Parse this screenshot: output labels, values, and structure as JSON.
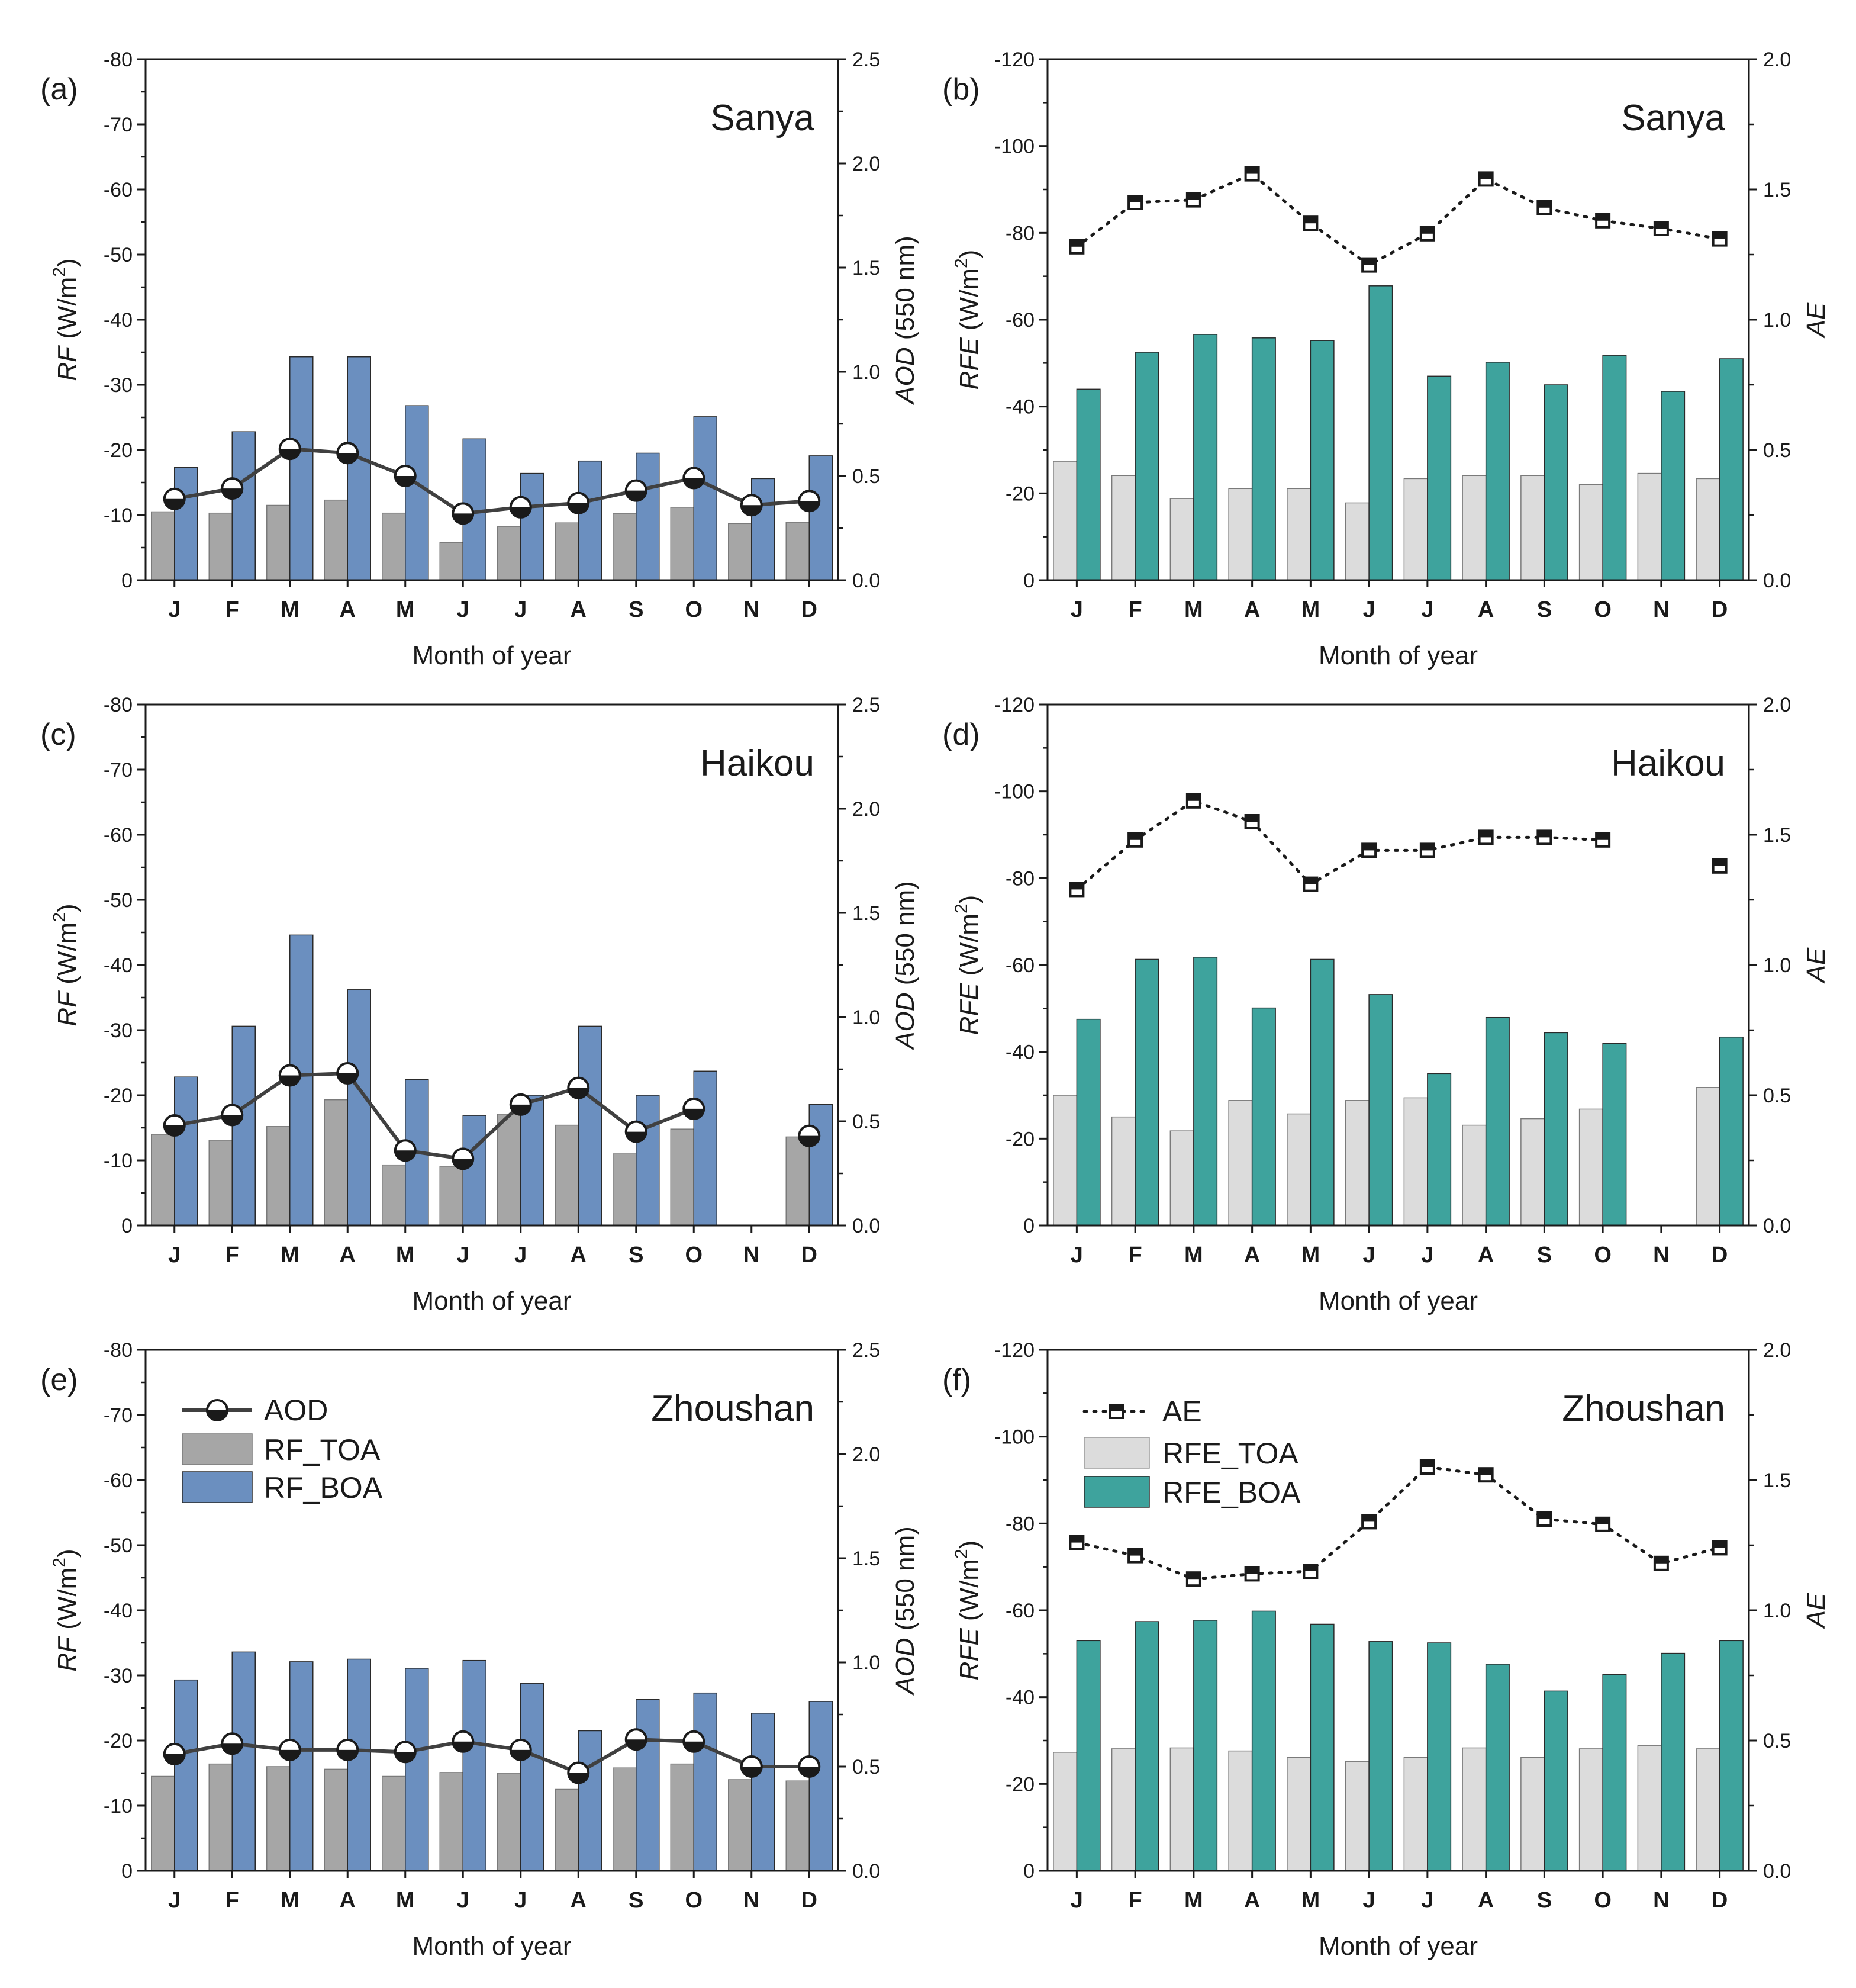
{
  "figure": {
    "xlabel": "Month of year",
    "months": [
      "J",
      "F",
      "M",
      "A",
      "M",
      "J",
      "J",
      "A",
      "S",
      "O",
      "N",
      "D"
    ]
  },
  "legend_rf": {
    "aod": "AOD",
    "toa": "RF_TOA",
    "boa": "RF_BOA"
  },
  "legend_rfe": {
    "ae": "AE",
    "toa": "RFE_TOA",
    "boa": "RFE_BOA"
  },
  "colors": {
    "rf_toa": "#a6a6a6",
    "rf_boa": "#6b8fbf",
    "rfe_toa": "#dcdcdc",
    "rfe_boa": "#3ea39d",
    "line": "#404040"
  },
  "chart_data": [
    {
      "panel": "(a)",
      "site": "Sanya",
      "type": "bar+line",
      "left_axis": {
        "label_main": "RF",
        "label_unit": "(W/m",
        "label_sup": "2",
        "label_close": ")",
        "ylim": [
          0,
          -80
        ],
        "ticks": [
          "0",
          "-10",
          "-20",
          "-30",
          "-40",
          "-50",
          "-60",
          "-70",
          "-80"
        ]
      },
      "right_axis": {
        "label_main": "AOD",
        "label_unit": "(550 nm)",
        "ylim": [
          0,
          2.5
        ],
        "ticks": [
          "0.0",
          "0.5",
          "1.0",
          "1.5",
          "2.0",
          "2.5"
        ]
      },
      "series": [
        {
          "name": "RF_TOA",
          "kind": "bar",
          "values": [
            -10.5,
            -10.3,
            -11.5,
            -12.3,
            -10.3,
            -5.8,
            -8.2,
            -8.8,
            -10.2,
            -11.2,
            -8.7,
            -8.9
          ]
        },
        {
          "name": "RF_BOA",
          "kind": "bar",
          "values": [
            -17.3,
            -22.8,
            -34.3,
            -34.3,
            -26.8,
            -21.7,
            -16.4,
            -18.3,
            -19.5,
            -25.1,
            -15.6,
            -19.1
          ]
        },
        {
          "name": "AOD",
          "kind": "line",
          "axis": "right",
          "values": [
            0.39,
            0.44,
            0.63,
            0.61,
            0.5,
            0.32,
            0.35,
            0.37,
            0.43,
            0.49,
            0.36,
            0.38
          ]
        }
      ]
    },
    {
      "panel": "(b)",
      "site": "Sanya",
      "type": "bar+line",
      "left_axis": {
        "label_main": "RFE",
        "label_unit": "(W/m",
        "label_sup": "2",
        "label_close": ")",
        "ylim": [
          0,
          -120
        ],
        "ticks": [
          "0",
          "-20",
          "-40",
          "-60",
          "-80",
          "-100",
          "-120"
        ]
      },
      "right_axis": {
        "label_main": "AE",
        "label_unit": "",
        "ylim": [
          0,
          2.0
        ],
        "ticks": [
          "0.0",
          "0.5",
          "1.0",
          "1.5",
          "2.0"
        ]
      },
      "series": [
        {
          "name": "RFE_TOA",
          "kind": "bar",
          "values": [
            -27.4,
            -24.1,
            -18.8,
            -21.1,
            -21.1,
            -17.8,
            -23.4,
            -24.1,
            -24.1,
            -22.0,
            -24.6,
            -23.4
          ]
        },
        {
          "name": "RFE_BOA",
          "kind": "bar",
          "values": [
            -44.0,
            -52.5,
            -56.6,
            -55.8,
            -55.2,
            -67.8,
            -47.0,
            -50.2,
            -45.0,
            -51.8,
            -43.5,
            -51.0
          ]
        },
        {
          "name": "AE",
          "kind": "line",
          "dotted": true,
          "axis": "right",
          "values": [
            1.28,
            1.45,
            1.46,
            1.56,
            1.37,
            1.21,
            1.33,
            1.54,
            1.43,
            1.38,
            1.35,
            1.31
          ]
        }
      ]
    },
    {
      "panel": "(c)",
      "site": "Haikou",
      "type": "bar+line",
      "left_axis": {
        "label_main": "RF",
        "label_unit": "(W/m",
        "label_sup": "2",
        "label_close": ")",
        "ylim": [
          0,
          -80
        ],
        "ticks": [
          "0",
          "-10",
          "-20",
          "-30",
          "-40",
          "-50",
          "-60",
          "-70",
          "-80"
        ]
      },
      "right_axis": {
        "label_main": "AOD",
        "label_unit": "(550 nm)",
        "ylim": [
          0,
          2.5
        ],
        "ticks": [
          "0.0",
          "0.5",
          "1.0",
          "1.5",
          "2.0",
          "2.5"
        ]
      },
      "series": [
        {
          "name": "RF_TOA",
          "kind": "bar",
          "values": [
            -14.0,
            -13.1,
            -15.2,
            -19.3,
            -9.3,
            -9.1,
            -17.1,
            -15.4,
            -11.0,
            -14.8,
            null,
            -13.6
          ]
        },
        {
          "name": "RF_BOA",
          "kind": "bar",
          "values": [
            -22.8,
            -30.6,
            -44.6,
            -36.2,
            -22.4,
            -16.9,
            -20.0,
            -30.6,
            -20.0,
            -23.7,
            null,
            -18.6
          ]
        },
        {
          "name": "AOD",
          "kind": "line",
          "axis": "right",
          "values": [
            0.48,
            0.53,
            0.72,
            0.73,
            0.36,
            0.32,
            0.58,
            0.66,
            0.45,
            0.56,
            null,
            0.43
          ]
        }
      ]
    },
    {
      "panel": "(d)",
      "site": "Haikou",
      "type": "bar+line",
      "left_axis": {
        "label_main": "RFE",
        "label_unit": "(W/m",
        "label_sup": "2",
        "label_close": ")",
        "ylim": [
          0,
          -120
        ],
        "ticks": [
          "0",
          "-20",
          "-40",
          "-60",
          "-80",
          "-100",
          "-120"
        ]
      },
      "right_axis": {
        "label_main": "AE",
        "label_unit": "",
        "ylim": [
          0,
          2.0
        ],
        "ticks": [
          "0.0",
          "0.5",
          "1.0",
          "1.5",
          "2.0"
        ]
      },
      "series": [
        {
          "name": "RFE_TOA",
          "kind": "bar",
          "values": [
            -30.0,
            -25.0,
            -21.8,
            -28.8,
            -25.7,
            -28.8,
            -29.4,
            -23.1,
            -24.6,
            -26.8,
            null,
            -31.8
          ]
        },
        {
          "name": "RFE_BOA",
          "kind": "bar",
          "values": [
            -47.5,
            -61.3,
            -61.8,
            -50.1,
            -61.3,
            -53.2,
            -35.0,
            -47.9,
            -44.4,
            -41.9,
            null,
            -43.4
          ]
        },
        {
          "name": "AE",
          "kind": "line",
          "dotted": true,
          "axis": "right",
          "values": [
            1.29,
            1.48,
            1.63,
            1.55,
            1.31,
            1.44,
            1.44,
            1.49,
            1.49,
            1.48,
            null,
            1.38
          ]
        }
      ]
    },
    {
      "panel": "(e)",
      "site": "Zhoushan",
      "type": "bar+line",
      "left_axis": {
        "label_main": "RF",
        "label_unit": "(W/m",
        "label_sup": "2",
        "label_close": ")",
        "ylim": [
          0,
          -80
        ],
        "ticks": [
          "0",
          "-10",
          "-20",
          "-30",
          "-40",
          "-50",
          "-60",
          "-70",
          "-80"
        ]
      },
      "right_axis": {
        "label_main": "AOD",
        "label_unit": "(550 nm)",
        "ylim": [
          0,
          2.5
        ],
        "ticks": [
          "0.0",
          "0.5",
          "1.0",
          "1.5",
          "2.0",
          "2.5"
        ]
      },
      "series": [
        {
          "name": "RF_TOA",
          "kind": "bar",
          "values": [
            -14.5,
            -16.4,
            -16.0,
            -15.6,
            -14.5,
            -15.1,
            -15.0,
            -12.5,
            -15.8,
            -16.4,
            -14.0,
            -13.8
          ]
        },
        {
          "name": "RF_BOA",
          "kind": "bar",
          "values": [
            -29.3,
            -33.6,
            -32.1,
            -32.5,
            -31.1,
            -32.3,
            -28.8,
            -21.5,
            -26.3,
            -27.3,
            -24.2,
            -26.0
          ]
        },
        {
          "name": "AOD",
          "kind": "line",
          "axis": "right",
          "values": [
            0.56,
            0.61,
            0.58,
            0.58,
            0.57,
            0.62,
            0.58,
            0.47,
            0.63,
            0.62,
            0.5,
            0.5
          ]
        }
      ]
    },
    {
      "panel": "(f)",
      "site": "Zhoushan",
      "type": "bar+line",
      "left_axis": {
        "label_main": "RFE",
        "label_unit": "(W/m",
        "label_sup": "2",
        "label_close": ")",
        "ylim": [
          0,
          -120
        ],
        "ticks": [
          "0",
          "-20",
          "-40",
          "-60",
          "-80",
          "-100",
          "-120"
        ]
      },
      "right_axis": {
        "label_main": "AE",
        "label_unit": "",
        "ylim": [
          0,
          2.0
        ],
        "ticks": [
          "0.0",
          "0.5",
          "1.0",
          "1.5",
          "2.0"
        ]
      },
      "series": [
        {
          "name": "RFE_TOA",
          "kind": "bar",
          "values": [
            -27.3,
            -28.1,
            -28.3,
            -27.6,
            -26.1,
            -25.2,
            -26.1,
            -28.3,
            -26.1,
            -28.1,
            -28.8,
            -28.1
          ]
        },
        {
          "name": "RFE_BOA",
          "kind": "bar",
          "values": [
            -53.0,
            -57.4,
            -57.7,
            -59.8,
            -56.8,
            -52.8,
            -52.5,
            -47.6,
            -41.4,
            -45.2,
            -50.1,
            -53.0
          ]
        },
        {
          "name": "AE",
          "kind": "line",
          "dotted": true,
          "axis": "right",
          "values": [
            1.26,
            1.21,
            1.12,
            1.14,
            1.15,
            1.34,
            1.55,
            1.52,
            1.35,
            1.33,
            1.18,
            1.24
          ]
        }
      ]
    }
  ]
}
